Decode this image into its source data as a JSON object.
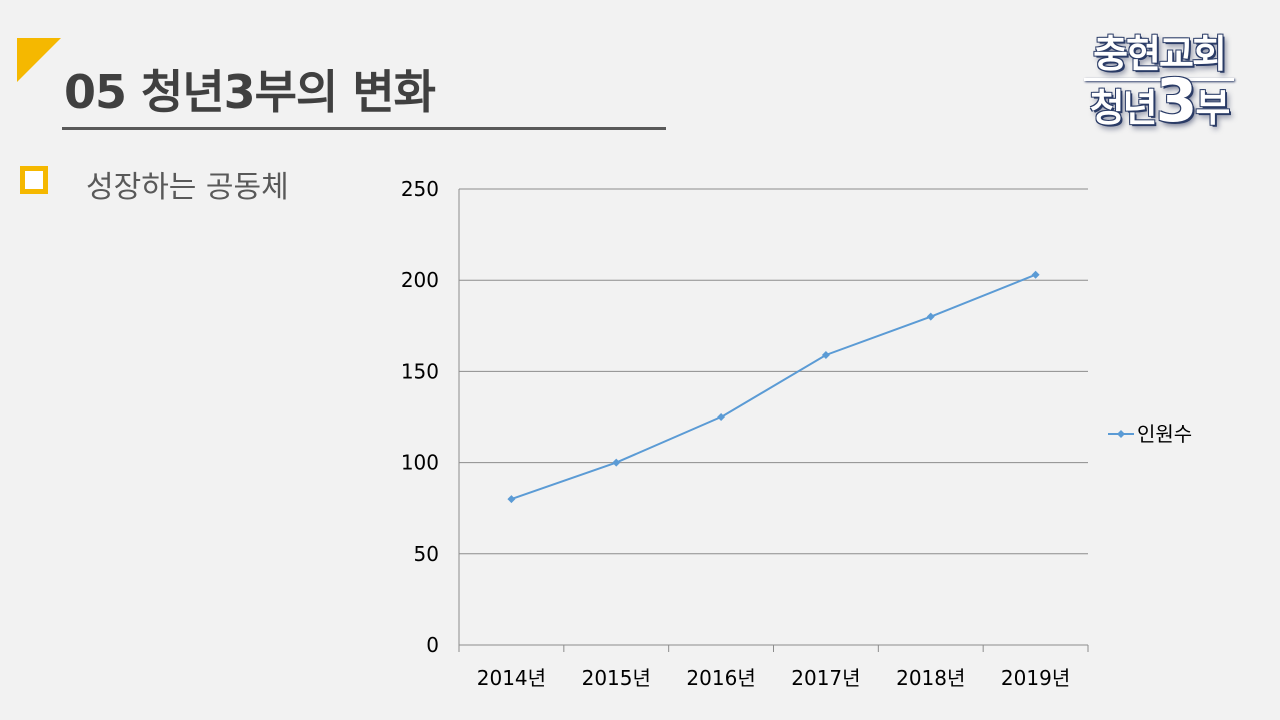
{
  "slide": {
    "title": "05  청년3부의 변화",
    "bullet": "성장하는 공동체"
  },
  "logo": {
    "line1": "충현교회",
    "line2_a": "청년",
    "line2_b": "3",
    "line2_c": "부"
  },
  "colors": {
    "accent": "#f5b800",
    "series": "#5b9bd5",
    "title": "#404040"
  },
  "chart_data": {
    "type": "line",
    "categories": [
      "2014년",
      "2015년",
      "2016년",
      "2017년",
      "2018년",
      "2019년"
    ],
    "series": [
      {
        "name": "인원수",
        "values": [
          80,
          100,
          125,
          159,
          180,
          203
        ]
      }
    ],
    "ylim": [
      0,
      250
    ],
    "yticks": [
      0,
      50,
      100,
      150,
      200,
      250
    ],
    "grid": true,
    "legend": "right"
  }
}
